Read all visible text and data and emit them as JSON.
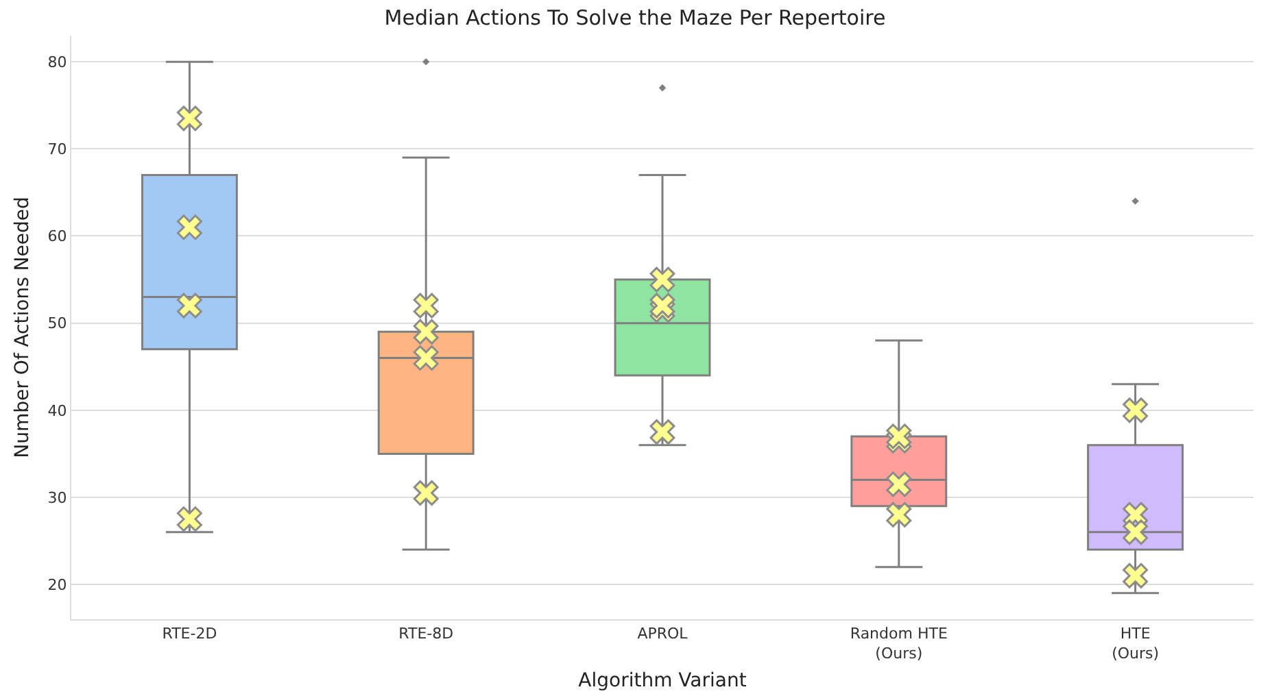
{
  "chart_data": {
    "type": "box",
    "title": "Median Actions To Solve the Maze Per Repertoire",
    "xlabel": "Algorithm Variant",
    "ylabel": "Number Of Actions Needed",
    "categories": [
      "RTE-2D",
      "RTE-8D",
      "APROL",
      "Random HTE\n(Ours)",
      "HTE\n(Ours)"
    ],
    "colors": [
      "#a1c9f4",
      "#ffb482",
      "#8de5a1",
      "#ff9f9b",
      "#d0bbff"
    ],
    "boxes": [
      {
        "low": 26,
        "q1": 47,
        "median": 53,
        "q3": 67,
        "high": 80
      },
      {
        "low": 24,
        "q1": 35,
        "median": 46,
        "q3": 49,
        "high": 69,
        "outliers": [
          80
        ]
      },
      {
        "low": 36,
        "q1": 44,
        "median": 50,
        "q3": 55,
        "high": 67,
        "outliers": [
          77
        ]
      },
      {
        "low": 22,
        "q1": 29,
        "median": 32,
        "q3": 37,
        "high": 48
      },
      {
        "low": 19,
        "q1": 24,
        "median": 26,
        "q3": 36,
        "high": 43,
        "outliers": [
          64
        ]
      }
    ],
    "series": [
      {
        "type": "scatter",
        "color": "#ffff8f",
        "marker": "cross",
        "x": [
          "RTE-2D",
          "RTE-2D",
          "RTE-2D",
          "RTE-2D",
          "RTE-8D",
          "RTE-8D",
          "RTE-8D",
          "RTE-8D",
          "APROL",
          "APROL",
          "APROL",
          "APROL",
          "Random HTE\n(Ours)",
          "Random HTE\n(Ours)",
          "Random HTE\n(Ours)",
          "Random HTE\n(Ours)",
          "HTE\n(Ours)",
          "HTE\n(Ours)",
          "HTE\n(Ours)",
          "HTE\n(Ours)"
        ],
        "values": [
          73.5,
          61,
          52,
          27.5,
          52,
          49,
          46,
          30.5,
          51.5,
          55,
          52,
          37.5,
          36.5,
          37,
          28,
          31.5,
          40,
          28,
          26,
          21
        ]
      }
    ],
    "ylim": [
      16,
      83
    ],
    "yticks": [
      20,
      30,
      40,
      50,
      60,
      70,
      80
    ],
    "grid": "y"
  }
}
